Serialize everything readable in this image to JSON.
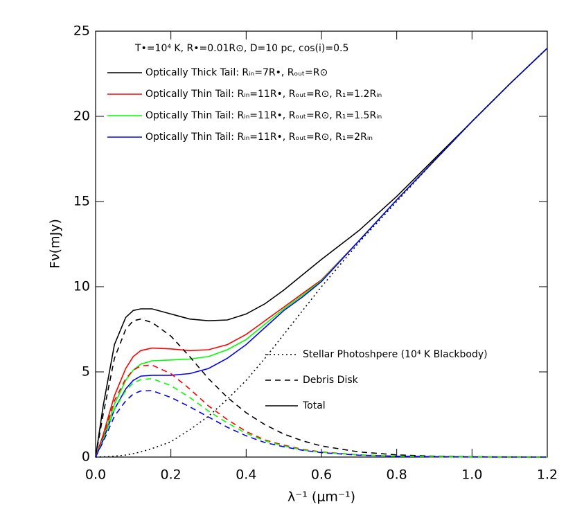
{
  "chart_data": {
    "type": "line",
    "annotation": "T•=10⁴ K, R•=0.01R⊙, D=10 pc, cos(i)=0.5",
    "xlabel": "λ⁻¹ (μm⁻¹)",
    "ylabel": "Fν(mJy)",
    "x": [
      0,
      0.02,
      0.05,
      0.08,
      0.1,
      0.12,
      0.15,
      0.2,
      0.25,
      0.3,
      0.35,
      0.4,
      0.45,
      0.5,
      0.55,
      0.6,
      0.7,
      0.8,
      0.9,
      1.0,
      1.1,
      1.2
    ],
    "series": [
      {
        "name": "Optically Thick Tail: Rᵢₙ=7R•, Rₒᵤₜ=R⊙",
        "color": "#000000",
        "style": "solid",
        "values": [
          0,
          3.0,
          6.6,
          8.2,
          8.6,
          8.7,
          8.7,
          8.4,
          8.1,
          8.0,
          8.05,
          8.4,
          9.0,
          9.8,
          10.7,
          11.6,
          13.3,
          15.3,
          17.5,
          19.7,
          21.9,
          24.0
        ]
      },
      {
        "name": "Optically Thin Tail: Rᵢₙ=11R•, Rₒᵤₜ=R⊙, R₁=1.2Rᵢₙ",
        "color": "#ff0000",
        "style": "solid",
        "values": [
          0,
          1.3,
          3.6,
          5.2,
          5.9,
          6.25,
          6.4,
          6.35,
          6.25,
          6.3,
          6.6,
          7.2,
          8.0,
          8.8,
          9.6,
          10.4,
          12.7,
          15.1,
          17.4,
          19.7,
          21.9,
          24.0
        ]
      },
      {
        "name": "Optically Thin Tail: Rᵢₙ=11R•, Rₒᵤₜ=R⊙, R₁=1.5Rᵢₙ",
        "color": "#00ff00",
        "style": "solid",
        "values": [
          0,
          1.1,
          3.1,
          4.5,
          5.1,
          5.45,
          5.65,
          5.7,
          5.75,
          5.9,
          6.3,
          6.9,
          7.8,
          8.7,
          9.5,
          10.35,
          12.7,
          15.1,
          17.4,
          19.7,
          21.9,
          24.0
        ]
      },
      {
        "name": "Optically Thin Tail: Rᵢₙ=11R•, Rₒᵤₜ=R⊙, R₁=2Rᵢₙ",
        "color": "#0000ff",
        "style": "solid",
        "values": [
          0,
          1.0,
          2.8,
          4.0,
          4.5,
          4.75,
          4.8,
          4.8,
          4.9,
          5.2,
          5.8,
          6.6,
          7.6,
          8.6,
          9.4,
          10.3,
          12.7,
          15.1,
          17.4,
          19.7,
          21.9,
          24.0
        ]
      },
      {
        "color": "#000000",
        "style": "dashed",
        "values": [
          0,
          2.5,
          5.8,
          7.5,
          8.0,
          8.1,
          7.9,
          7.1,
          5.9,
          4.6,
          3.5,
          2.6,
          1.9,
          1.35,
          0.95,
          0.65,
          0.3,
          0.13,
          0.05,
          0.02,
          0.01,
          0
        ]
      },
      {
        "color": "#ff0000",
        "style": "dashed",
        "values": [
          0,
          1.2,
          3.3,
          4.6,
          5.1,
          5.35,
          5.4,
          4.9,
          4.0,
          3.0,
          2.2,
          1.5,
          1.0,
          0.7,
          0.45,
          0.3,
          0.13,
          0.05,
          0.02,
          0.01,
          0,
          0
        ]
      },
      {
        "color": "#00ff00",
        "style": "dashed",
        "values": [
          0,
          1.0,
          2.8,
          3.9,
          4.35,
          4.55,
          4.6,
          4.2,
          3.5,
          2.7,
          2.0,
          1.4,
          0.95,
          0.65,
          0.42,
          0.28,
          0.12,
          0.05,
          0.02,
          0.01,
          0,
          0
        ]
      },
      {
        "color": "#0000ff",
        "style": "dashed",
        "values": [
          0,
          0.9,
          2.4,
          3.3,
          3.7,
          3.88,
          3.9,
          3.5,
          2.95,
          2.35,
          1.75,
          1.25,
          0.85,
          0.6,
          0.4,
          0.26,
          0.11,
          0.05,
          0.02,
          0.01,
          0,
          0
        ]
      },
      {
        "color": "#000000",
        "style": "dotted",
        "values": [
          0,
          0.01,
          0.05,
          0.12,
          0.2,
          0.3,
          0.5,
          0.9,
          1.6,
          2.4,
          3.4,
          4.5,
          5.8,
          7.2,
          8.6,
          10.0,
          12.6,
          15.0,
          17.4,
          19.7,
          21.9,
          24.0
        ]
      }
    ],
    "style_legend": [
      {
        "label": "Stellar Photoshpere (10⁴ K Blackbody)",
        "style": "dotted"
      },
      {
        "label": "Debris Disk",
        "style": "dashed"
      },
      {
        "label": "Total",
        "style": "solid"
      }
    ],
    "xlim": [
      0,
      1.2
    ],
    "xticks": [
      {
        "value": 0,
        "label": "0.0"
      },
      0.2,
      0.4,
      0.6,
      0.8,
      {
        "value": 1,
        "label": "1.0"
      },
      1.2
    ],
    "ylim": [
      0,
      25
    ],
    "yticks": [
      0,
      5,
      10,
      15,
      20,
      25
    ],
    "legend": "upper left"
  }
}
